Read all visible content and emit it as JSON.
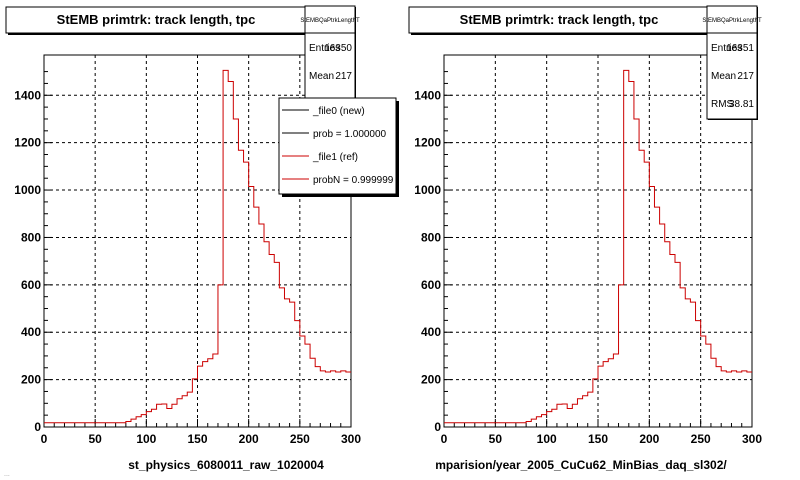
{
  "chart_data": [
    {
      "type": "bar",
      "title": "StEMB primtrk: track length, tpc",
      "xlabel": "st_physics_6080011_raw_1020004",
      "xlim": [
        0,
        300
      ],
      "ylim": [
        0,
        1570
      ],
      "xticks": [
        "0",
        "50",
        "100",
        "150",
        "200",
        "250",
        "300"
      ],
      "yticks": [
        "0",
        "200",
        "400",
        "600",
        "800",
        "1000",
        "1200",
        "1400"
      ],
      "grid": true,
      "bin_width": 5,
      "stats": {
        "name": "StEMBQaPtrkLengthT",
        "entries_label": "Entries",
        "entries": "16350",
        "mean_label": "Mean",
        "mean": "217"
      },
      "legend": [
        {
          "label": "_file0 (new)",
          "color": "#000000"
        },
        {
          "label": "prob = 1.000000",
          "color": "#000000"
        },
        {
          "label": "_file1 (ref)",
          "color": "#cc0000"
        },
        {
          "label": "probN = 0.999999",
          "color": "#cc0000"
        }
      ],
      "series": [
        {
          "color": "#cc0000",
          "values": [
            18,
            18,
            18,
            18,
            18,
            18,
            18,
            18,
            18,
            18,
            18,
            18,
            18,
            18,
            18,
            18,
            23,
            33,
            43,
            52,
            65,
            75,
            96,
            97,
            78,
            96,
            119,
            132,
            147,
            203,
            257,
            276,
            288,
            308,
            600,
            1505,
            1458,
            1300,
            1168,
            1118,
            1015,
            928,
            857,
            782,
            728,
            695,
            587,
            541,
            527,
            449,
            384,
            350,
            290,
            255,
            237,
            232,
            237,
            232,
            237,
            232
          ]
        }
      ]
    },
    {
      "type": "bar",
      "title": "StEMB primtrk: track length, tpc",
      "xlabel": "mparision/year_2005_CuCu62_MinBias_daq_sl302/",
      "xlim": [
        0,
        300
      ],
      "ylim": [
        0,
        1570
      ],
      "xticks": [
        "0",
        "50",
        "100",
        "150",
        "200",
        "250",
        "300"
      ],
      "yticks": [
        "0",
        "200",
        "400",
        "600",
        "800",
        "1000",
        "1200",
        "1400"
      ],
      "grid": true,
      "bin_width": 5,
      "stats": {
        "name": "StEMBQaPtrkLengthT",
        "entries_label": "Entries",
        "entries": "16351",
        "mean_label": "Mean",
        "mean": "217",
        "rms_label": "RMS",
        "rms": "38.81"
      },
      "series": [
        {
          "color": "#cc0000",
          "values": [
            18,
            18,
            18,
            18,
            18,
            18,
            18,
            18,
            18,
            18,
            18,
            18,
            18,
            18,
            18,
            18,
            23,
            33,
            43,
            52,
            65,
            75,
            96,
            97,
            78,
            96,
            119,
            132,
            147,
            203,
            257,
            276,
            288,
            308,
            600,
            1505,
            1458,
            1300,
            1168,
            1118,
            1015,
            928,
            857,
            782,
            728,
            695,
            587,
            541,
            527,
            449,
            384,
            350,
            290,
            255,
            237,
            232,
            237,
            232,
            237,
            232
          ]
        }
      ]
    }
  ],
  "footer_text": "..."
}
